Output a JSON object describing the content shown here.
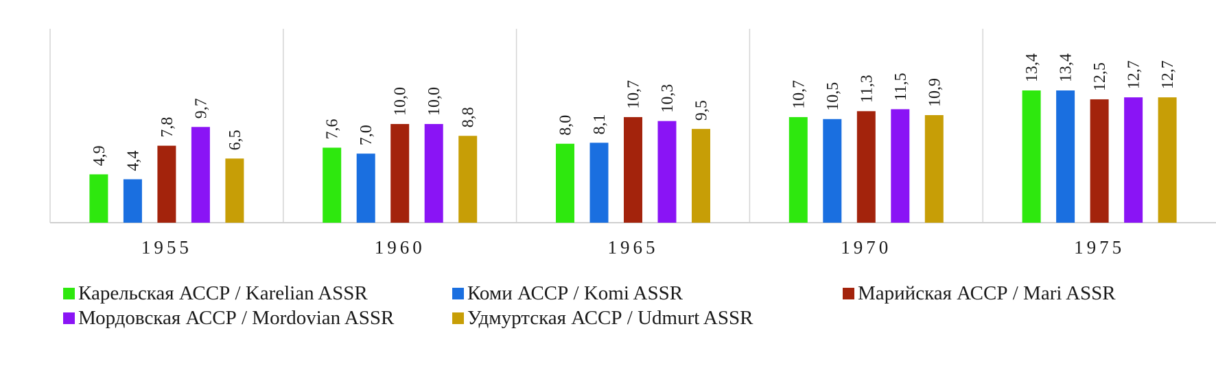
{
  "chart_data": {
    "type": "bar",
    "categories": [
      "1955",
      "1960",
      "1965",
      "1970",
      "1975"
    ],
    "series": [
      {
        "name": "Карельская АССР / Karelian ASSR",
        "color": "#2ee80e",
        "values": [
          4.9,
          7.6,
          8.0,
          10.7,
          13.4
        ],
        "labels": [
          "4,9",
          "7,6",
          "8,0",
          "10,7",
          "13,4"
        ]
      },
      {
        "name": "Коми АССР / Komi ASSR",
        "color": "#1a6fe0",
        "values": [
          4.4,
          7.0,
          8.1,
          10.5,
          13.4
        ],
        "labels": [
          "4,4",
          "7,0",
          "8,1",
          "10,5",
          "13,4"
        ]
      },
      {
        "name": "Марийская АССР / Mari ASSR",
        "color": "#a3230c",
        "values": [
          7.8,
          10.0,
          10.7,
          11.3,
          12.5
        ],
        "labels": [
          "7,8",
          "10,0",
          "10,7",
          "11,3",
          "12,5"
        ]
      },
      {
        "name": "Мордовская АССР / Mordovian ASSR",
        "color": "#8a14f5",
        "values": [
          9.7,
          10.0,
          10.3,
          11.5,
          12.7
        ],
        "labels": [
          "9,7",
          "10,0",
          "10,3",
          "11,5",
          "12,7"
        ]
      },
      {
        "name": "Удмуртская АССР / Udmurt ASSR",
        "color": "#c79e06",
        "values": [
          6.5,
          8.8,
          9.5,
          10.9,
          12.7
        ],
        "labels": [
          "6,5",
          "8,8",
          "9,5",
          "10,9",
          "12,7"
        ]
      }
    ],
    "title": "",
    "xlabel": "",
    "ylabel": "",
    "ylim": [
      0,
      20
    ],
    "grid": false,
    "legend": "bottom"
  }
}
